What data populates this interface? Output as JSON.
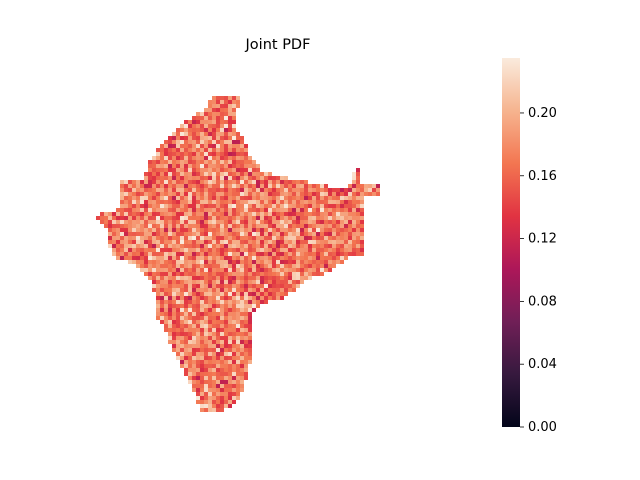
{
  "figure": {
    "title": "Joint PDF"
  },
  "chart_data": {
    "type": "heatmap",
    "title": "Joint PDF",
    "xlabel": "",
    "ylabel": "",
    "axes_visible": false,
    "grid": false,
    "colormap": "rocket",
    "vmin": 0.0,
    "vmax": 0.235,
    "value_range_observed": [
      0.11,
      0.235
    ],
    "typical_value": 0.17,
    "colorbar": {
      "placement": "right",
      "ticks": [
        0.0,
        0.04,
        0.08,
        0.12,
        0.16,
        0.2
      ],
      "tick_labels": [
        "0.00",
        "0.04",
        "0.08",
        "0.12",
        "0.16",
        "0.20"
      ]
    },
    "colormap_stops": [
      "#03051a",
      "#36193e",
      "#701f57",
      "#ad1759",
      "#e13342",
      "#f37651",
      "#f6b48f",
      "#faebdd"
    ],
    "region_description": "values shown only inside an India-shaped mask; cells outside are empty"
  }
}
